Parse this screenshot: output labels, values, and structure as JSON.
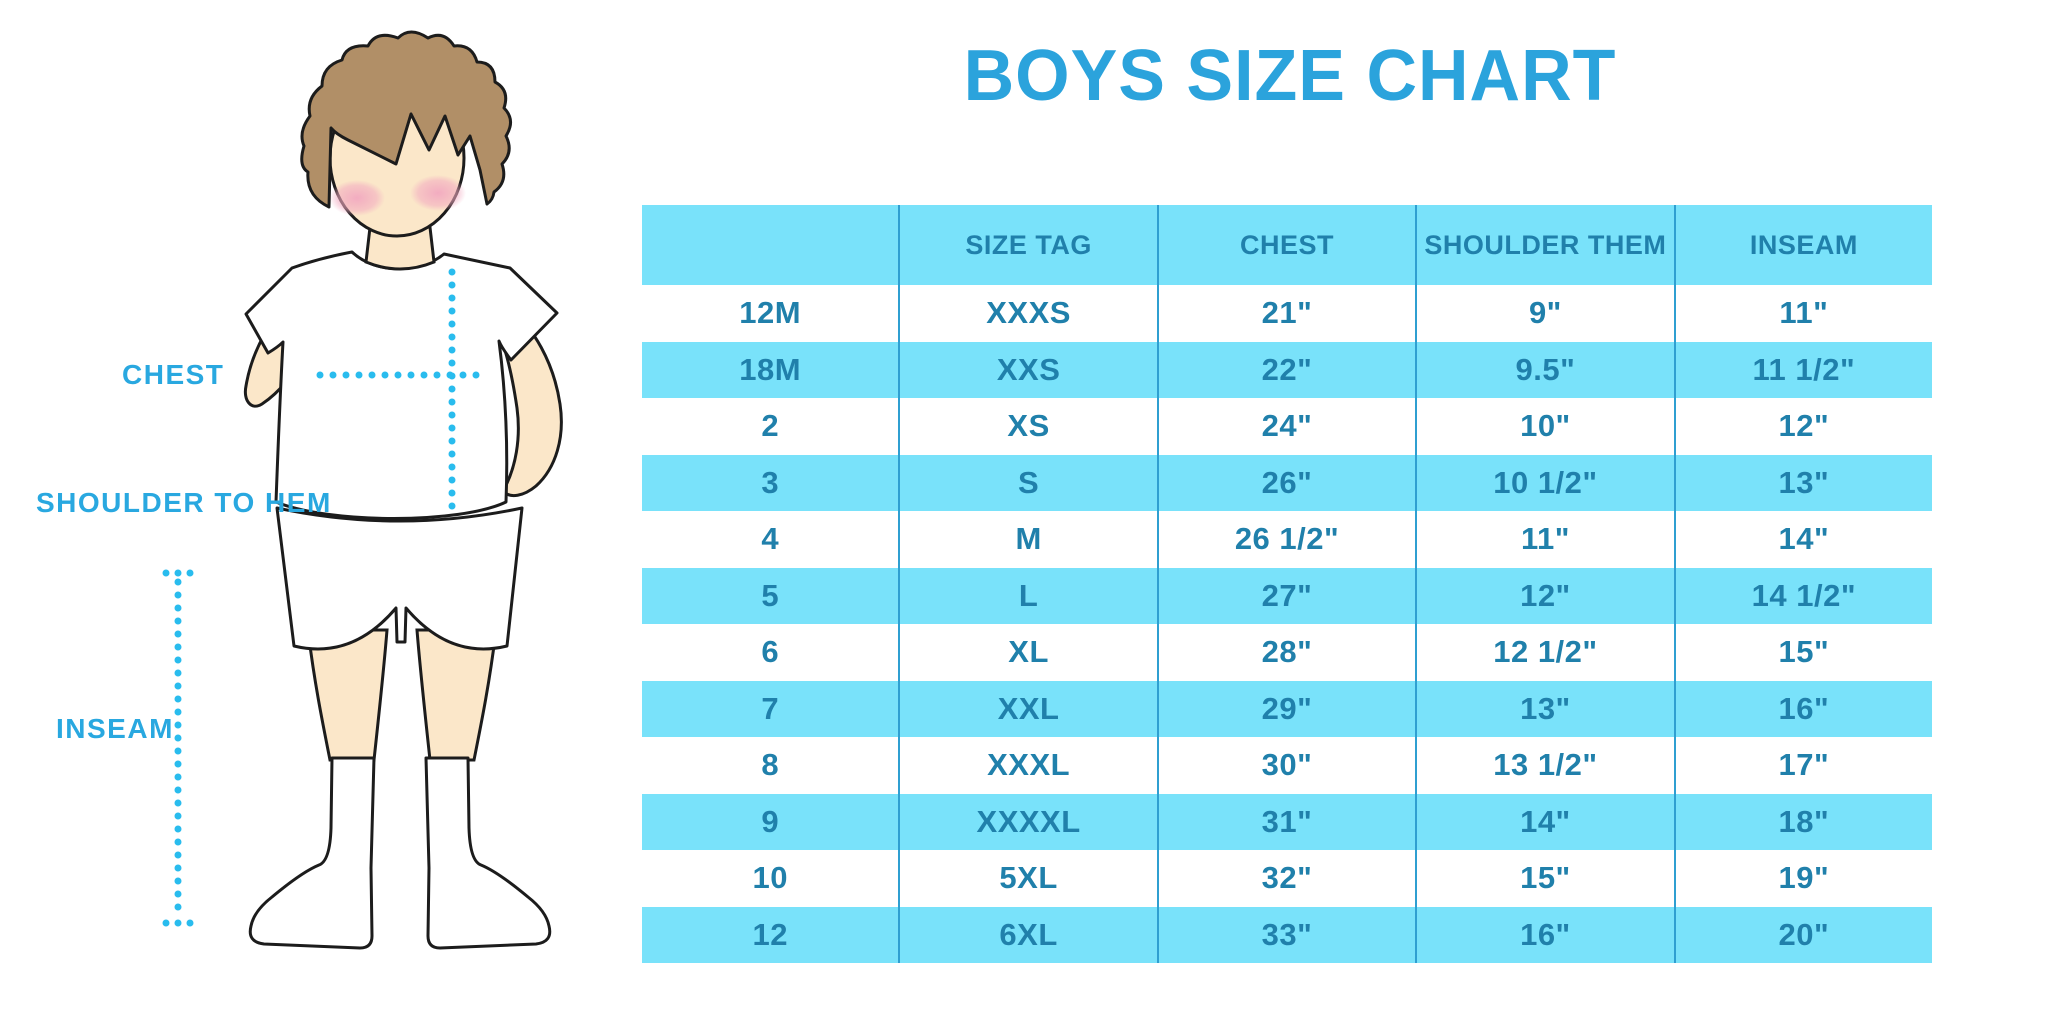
{
  "title": "BOYS SIZE CHART",
  "figure": {
    "description": "outline illustration of a boy in white t-shirt, shorts and knee socks with measurement guides",
    "labels": {
      "chest": "CHEST",
      "shoulder_to_hem": "SHOULDER TO HEM",
      "inseam": "INSEAM"
    }
  },
  "size_table": {
    "columns": [
      "",
      "SIZE TAG",
      "CHEST",
      "SHOULDER THEM",
      "INSEAM"
    ],
    "rows": [
      [
        "12M",
        "XXXS",
        "21\"",
        "9\"",
        "11\""
      ],
      [
        "18M",
        "XXS",
        "22\"",
        "9.5\"",
        "11 1/2\""
      ],
      [
        "2",
        "XS",
        "24\"",
        "10\"",
        "12\""
      ],
      [
        "3",
        "S",
        "26\"",
        "10 1/2\"",
        "13\""
      ],
      [
        "4",
        "M",
        "26 1/2\"",
        "11\"",
        "14\""
      ],
      [
        "5",
        "L",
        "27\"",
        "12\"",
        "14 1/2\""
      ],
      [
        "6",
        "XL",
        "28\"",
        "12 1/2\"",
        "15\""
      ],
      [
        "7",
        "XXL",
        "29\"",
        "13\"",
        "16\""
      ],
      [
        "8",
        "XXXL",
        "30\"",
        "13 1/2\"",
        "17\""
      ],
      [
        "9",
        "XXXXL",
        "31\"",
        "14\"",
        "18\""
      ],
      [
        "10",
        "5XL",
        "32\"",
        "15\"",
        "19\""
      ],
      [
        "12",
        "6XL",
        "33\"",
        "16\"",
        "20\""
      ]
    ]
  },
  "colors": {
    "title_blue": "#2ba3dc",
    "label_blue": "#29a8e0",
    "dotted_line_cyan": "#29bcee",
    "table_row_cyan": "#79e2fa",
    "table_text_teal": "#2080ab",
    "table_divider_blue": "#2f9fd1",
    "skin": "#fbe7c9",
    "hair_brown": "#b18f67",
    "blush_pink": "#f2a9c0",
    "outline": "#1c1c1c"
  }
}
